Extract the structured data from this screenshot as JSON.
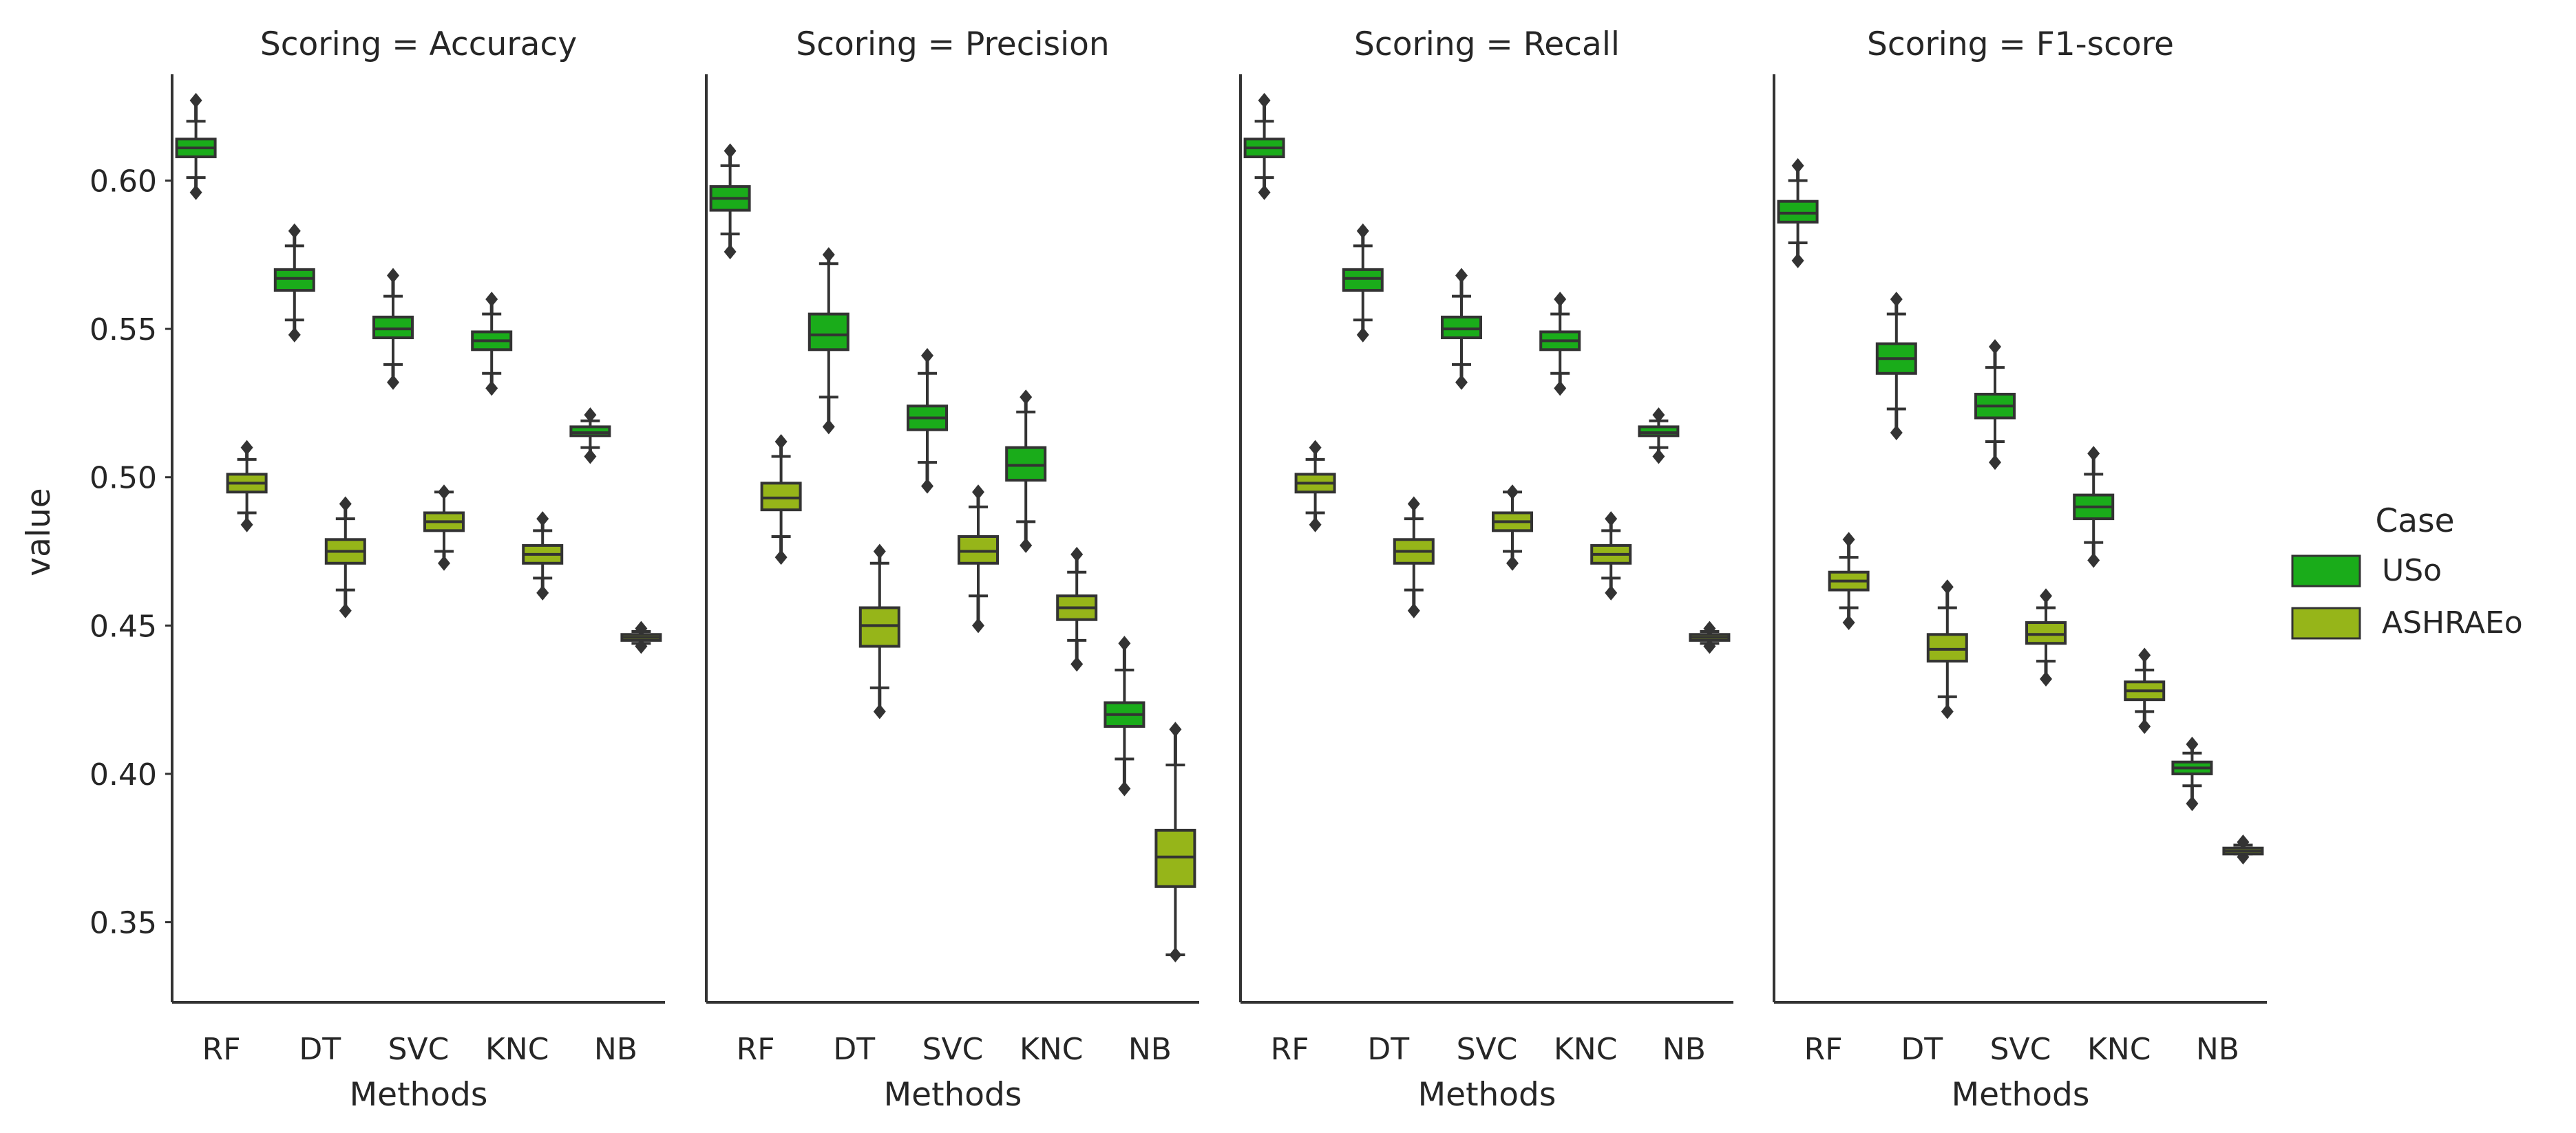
{
  "chart_data": {
    "type": "boxplot",
    "x_categories": [
      "RF",
      "DT",
      "SVC",
      "KNC",
      "NB"
    ],
    "xlabel": "Methods",
    "ylabel": "value",
    "ylim": [
      0.323,
      0.64
    ],
    "yticks": [
      "0.35",
      "0.40",
      "0.45",
      "0.50",
      "0.55",
      "0.60"
    ],
    "grid": false,
    "legend": {
      "title": "Case",
      "position": "right",
      "entries": [
        {
          "name": "USo",
          "color": "#1aac1a"
        },
        {
          "name": "ASHRAEo",
          "color": "#96b519"
        }
      ]
    },
    "facets": [
      {
        "title": "Scoring = Accuracy",
        "series": [
          {
            "name": "USo",
            "boxes": [
              {
                "q1": 0.608,
                "median": 0.611,
                "q3": 0.614,
                "wlo": 0.601,
                "whi": 0.62,
                "out_lo": 0.596,
                "out_hi": 0.627
              },
              {
                "q1": 0.563,
                "median": 0.567,
                "q3": 0.57,
                "wlo": 0.553,
                "whi": 0.578,
                "out_lo": 0.548,
                "out_hi": 0.583
              },
              {
                "q1": 0.547,
                "median": 0.55,
                "q3": 0.554,
                "wlo": 0.538,
                "whi": 0.561,
                "out_lo": 0.532,
                "out_hi": 0.568
              },
              {
                "q1": 0.543,
                "median": 0.546,
                "q3": 0.549,
                "wlo": 0.535,
                "whi": 0.555,
                "out_lo": 0.53,
                "out_hi": 0.56
              },
              {
                "q1": 0.514,
                "median": 0.515,
                "q3": 0.517,
                "wlo": 0.51,
                "whi": 0.519,
                "out_lo": 0.507,
                "out_hi": 0.521
              }
            ]
          },
          {
            "name": "ASHRAEo",
            "boxes": [
              {
                "q1": 0.495,
                "median": 0.498,
                "q3": 0.501,
                "wlo": 0.488,
                "whi": 0.506,
                "out_lo": 0.484,
                "out_hi": 0.51
              },
              {
                "q1": 0.471,
                "median": 0.475,
                "q3": 0.479,
                "wlo": 0.462,
                "whi": 0.486,
                "out_lo": 0.455,
                "out_hi": 0.491
              },
              {
                "q1": 0.482,
                "median": 0.485,
                "q3": 0.488,
                "wlo": 0.475,
                "whi": 0.495,
                "out_lo": 0.471,
                "out_hi": 0.495
              },
              {
                "q1": 0.471,
                "median": 0.474,
                "q3": 0.477,
                "wlo": 0.466,
                "whi": 0.482,
                "out_lo": 0.461,
                "out_hi": 0.486
              },
              {
                "q1": 0.445,
                "median": 0.446,
                "q3": 0.447,
                "wlo": 0.444,
                "whi": 0.448,
                "out_lo": 0.443,
                "out_hi": 0.449
              }
            ]
          }
        ]
      },
      {
        "title": "Scoring = Precision",
        "series": [
          {
            "name": "USo",
            "boxes": [
              {
                "q1": 0.59,
                "median": 0.594,
                "q3": 0.598,
                "wlo": 0.582,
                "whi": 0.605,
                "out_lo": 0.576,
                "out_hi": 0.61
              },
              {
                "q1": 0.543,
                "median": 0.548,
                "q3": 0.555,
                "wlo": 0.527,
                "whi": 0.572,
                "out_lo": 0.517,
                "out_hi": 0.575
              },
              {
                "q1": 0.516,
                "median": 0.52,
                "q3": 0.524,
                "wlo": 0.505,
                "whi": 0.535,
                "out_lo": 0.497,
                "out_hi": 0.541
              },
              {
                "q1": 0.499,
                "median": 0.504,
                "q3": 0.51,
                "wlo": 0.485,
                "whi": 0.522,
                "out_lo": 0.477,
                "out_hi": 0.527
              },
              {
                "q1": 0.416,
                "median": 0.42,
                "q3": 0.424,
                "wlo": 0.405,
                "whi": 0.435,
                "out_lo": 0.395,
                "out_hi": 0.444
              }
            ]
          },
          {
            "name": "ASHRAEo",
            "boxes": [
              {
                "q1": 0.489,
                "median": 0.493,
                "q3": 0.498,
                "wlo": 0.48,
                "whi": 0.507,
                "out_lo": 0.473,
                "out_hi": 0.512
              },
              {
                "q1": 0.443,
                "median": 0.45,
                "q3": 0.456,
                "wlo": 0.429,
                "whi": 0.471,
                "out_lo": 0.421,
                "out_hi": 0.475
              },
              {
                "q1": 0.471,
                "median": 0.475,
                "q3": 0.48,
                "wlo": 0.46,
                "whi": 0.49,
                "out_lo": 0.45,
                "out_hi": 0.495
              },
              {
                "q1": 0.452,
                "median": 0.456,
                "q3": 0.46,
                "wlo": 0.445,
                "whi": 0.468,
                "out_lo": 0.437,
                "out_hi": 0.474
              },
              {
                "q1": 0.362,
                "median": 0.372,
                "q3": 0.381,
                "wlo": 0.339,
                "whi": 0.403,
                "out_lo": 0.339,
                "out_hi": 0.415
              }
            ]
          }
        ]
      },
      {
        "title": "Scoring = Recall",
        "series": [
          {
            "name": "USo",
            "boxes": [
              {
                "q1": 0.608,
                "median": 0.611,
                "q3": 0.614,
                "wlo": 0.601,
                "whi": 0.62,
                "out_lo": 0.596,
                "out_hi": 0.627
              },
              {
                "q1": 0.563,
                "median": 0.567,
                "q3": 0.57,
                "wlo": 0.553,
                "whi": 0.578,
                "out_lo": 0.548,
                "out_hi": 0.583
              },
              {
                "q1": 0.547,
                "median": 0.55,
                "q3": 0.554,
                "wlo": 0.538,
                "whi": 0.561,
                "out_lo": 0.532,
                "out_hi": 0.568
              },
              {
                "q1": 0.543,
                "median": 0.546,
                "q3": 0.549,
                "wlo": 0.535,
                "whi": 0.555,
                "out_lo": 0.53,
                "out_hi": 0.56
              },
              {
                "q1": 0.514,
                "median": 0.515,
                "q3": 0.517,
                "wlo": 0.51,
                "whi": 0.519,
                "out_lo": 0.507,
                "out_hi": 0.521
              }
            ]
          },
          {
            "name": "ASHRAEo",
            "boxes": [
              {
                "q1": 0.495,
                "median": 0.498,
                "q3": 0.501,
                "wlo": 0.488,
                "whi": 0.506,
                "out_lo": 0.484,
                "out_hi": 0.51
              },
              {
                "q1": 0.471,
                "median": 0.475,
                "q3": 0.479,
                "wlo": 0.462,
                "whi": 0.486,
                "out_lo": 0.455,
                "out_hi": 0.491
              },
              {
                "q1": 0.482,
                "median": 0.485,
                "q3": 0.488,
                "wlo": 0.475,
                "whi": 0.495,
                "out_lo": 0.471,
                "out_hi": 0.495
              },
              {
                "q1": 0.471,
                "median": 0.474,
                "q3": 0.477,
                "wlo": 0.466,
                "whi": 0.482,
                "out_lo": 0.461,
                "out_hi": 0.486
              },
              {
                "q1": 0.445,
                "median": 0.446,
                "q3": 0.447,
                "wlo": 0.444,
                "whi": 0.448,
                "out_lo": 0.443,
                "out_hi": 0.449
              }
            ]
          }
        ]
      },
      {
        "title": "Scoring = F1-score",
        "series": [
          {
            "name": "USo",
            "boxes": [
              {
                "q1": 0.586,
                "median": 0.589,
                "q3": 0.593,
                "wlo": 0.579,
                "whi": 0.6,
                "out_lo": 0.573,
                "out_hi": 0.605
              },
              {
                "q1": 0.535,
                "median": 0.54,
                "q3": 0.545,
                "wlo": 0.523,
                "whi": 0.555,
                "out_lo": 0.515,
                "out_hi": 0.56
              },
              {
                "q1": 0.52,
                "median": 0.524,
                "q3": 0.528,
                "wlo": 0.512,
                "whi": 0.537,
                "out_lo": 0.505,
                "out_hi": 0.544
              },
              {
                "q1": 0.486,
                "median": 0.49,
                "q3": 0.494,
                "wlo": 0.478,
                "whi": 0.501,
                "out_lo": 0.472,
                "out_hi": 0.508
              },
              {
                "q1": 0.4,
                "median": 0.402,
                "q3": 0.404,
                "wlo": 0.396,
                "whi": 0.407,
                "out_lo": 0.39,
                "out_hi": 0.41
              }
            ]
          },
          {
            "name": "ASHRAEo",
            "boxes": [
              {
                "q1": 0.462,
                "median": 0.465,
                "q3": 0.468,
                "wlo": 0.456,
                "whi": 0.473,
                "out_lo": 0.451,
                "out_hi": 0.479
              },
              {
                "q1": 0.438,
                "median": 0.442,
                "q3": 0.447,
                "wlo": 0.426,
                "whi": 0.456,
                "out_lo": 0.421,
                "out_hi": 0.463
              },
              {
                "q1": 0.444,
                "median": 0.447,
                "q3": 0.451,
                "wlo": 0.438,
                "whi": 0.456,
                "out_lo": 0.432,
                "out_hi": 0.46
              },
              {
                "q1": 0.425,
                "median": 0.428,
                "q3": 0.431,
                "wlo": 0.421,
                "whi": 0.435,
                "out_lo": 0.416,
                "out_hi": 0.44
              },
              {
                "q1": 0.373,
                "median": 0.374,
                "q3": 0.375,
                "wlo": 0.373,
                "whi": 0.376,
                "out_lo": 0.372,
                "out_hi": 0.377
              }
            ]
          }
        ]
      }
    ]
  }
}
